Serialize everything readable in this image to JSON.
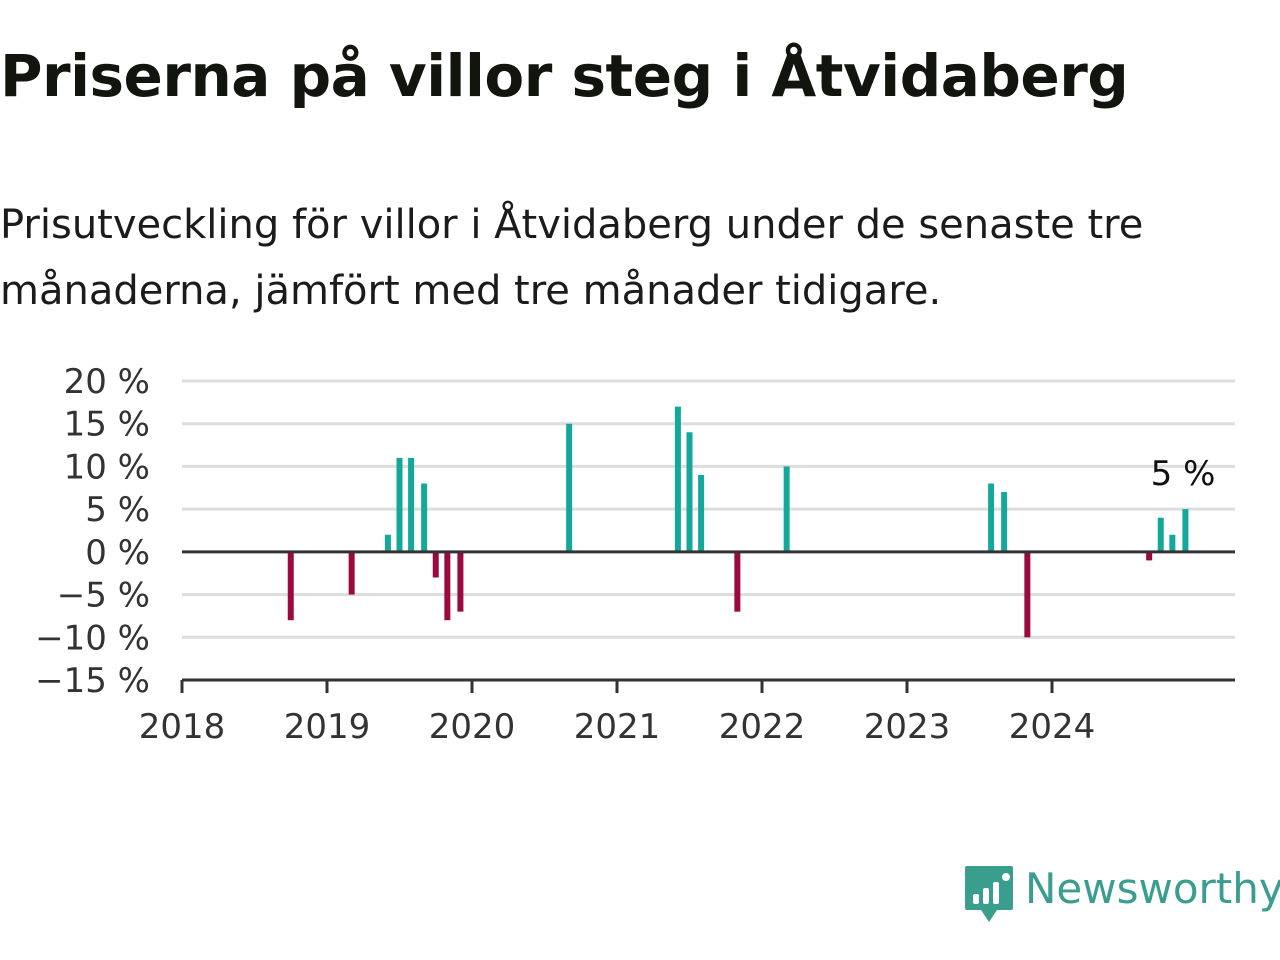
{
  "title": "Priserna på villor steg i Åtvidaberg",
  "subtitle": "Prisutveckling för villor i Åtvidaberg under de senaste tre månaderna, jämfört med tre månader tidigare.",
  "brand": {
    "name": "Newsworthy",
    "color": "#3a9e8f",
    "icon": "newsworthy-logo-icon"
  },
  "colors": {
    "positive": "#14a89a",
    "negative": "#9a0a3e",
    "grid": "#dddddd",
    "axis": "#333333",
    "tick_text": "#333333"
  },
  "chart_data": {
    "type": "bar",
    "title": "Priserna på villor steg i Åtvidaberg",
    "subtitle": "Prisutveckling för villor i Åtvidaberg under de senaste tre månaderna, jämfört med tre månader tidigare.",
    "xlabel": "",
    "ylabel": "",
    "x_ticks": [
      "2018",
      "2019",
      "2020",
      "2021",
      "2022",
      "2023",
      "2024"
    ],
    "y_ticks": [
      "20 %",
      "15 %",
      "10 %",
      "5 %",
      "0 %",
      "−5 %",
      "−10 %",
      "−15 %"
    ],
    "ylim": [
      -15,
      20
    ],
    "xlim": [
      2018.0,
      2025.3
    ],
    "grid": true,
    "legend": false,
    "annotation": {
      "text": "5 %",
      "target": "last"
    },
    "series": [
      {
        "x": 2018.75,
        "value": -8
      },
      {
        "x": 2019.17,
        "value": -5
      },
      {
        "x": 2019.42,
        "value": 2
      },
      {
        "x": 2019.5,
        "value": 11
      },
      {
        "x": 2019.58,
        "value": 11
      },
      {
        "x": 2019.67,
        "value": 8
      },
      {
        "x": 2019.75,
        "value": -3
      },
      {
        "x": 2019.83,
        "value": -8
      },
      {
        "x": 2019.92,
        "value": -7
      },
      {
        "x": 2020.67,
        "value": 15
      },
      {
        "x": 2021.42,
        "value": 17
      },
      {
        "x": 2021.5,
        "value": 14
      },
      {
        "x": 2021.58,
        "value": 9
      },
      {
        "x": 2021.83,
        "value": -7
      },
      {
        "x": 2022.17,
        "value": 10
      },
      {
        "x": 2023.58,
        "value": 8
      },
      {
        "x": 2023.67,
        "value": 7
      },
      {
        "x": 2023.83,
        "value": -10
      },
      {
        "x": 2024.67,
        "value": -1
      },
      {
        "x": 2024.75,
        "value": 4
      },
      {
        "x": 2024.83,
        "value": 2
      },
      {
        "x": 2024.92,
        "value": 5
      }
    ]
  }
}
